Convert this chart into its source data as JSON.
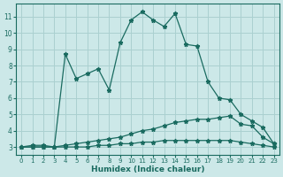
{
  "xlabel": "Humidex (Indice chaleur)",
  "background_color": "#cce8e8",
  "line_color": "#1a6b60",
  "grid_color": "#aad0d0",
  "xlim_min": -0.5,
  "xlim_max": 23.5,
  "ylim_min": 2.5,
  "ylim_max": 11.8,
  "xticks": [
    0,
    1,
    2,
    3,
    4,
    5,
    6,
    7,
    8,
    9,
    10,
    11,
    12,
    13,
    14,
    15,
    16,
    17,
    18,
    19,
    20,
    21,
    22,
    23
  ],
  "yticks": [
    3,
    4,
    5,
    6,
    7,
    8,
    9,
    10,
    11
  ],
  "series_main_x": [
    0,
    1,
    2,
    3,
    4,
    5,
    6,
    7,
    8,
    9,
    10,
    11,
    12,
    13,
    14,
    15,
    16,
    17,
    18,
    19,
    20,
    21,
    22,
    23
  ],
  "series_main_y": [
    3.0,
    3.1,
    3.1,
    3.0,
    8.7,
    7.2,
    7.5,
    7.8,
    6.5,
    9.4,
    10.8,
    11.3,
    10.8,
    10.4,
    11.2,
    9.3,
    9.2,
    7.0,
    6.0,
    5.9,
    5.0,
    4.6,
    4.2,
    3.2
  ],
  "series_mid_x": [
    0,
    1,
    2,
    3,
    4,
    5,
    6,
    7,
    8,
    9,
    10,
    11,
    12,
    13,
    14,
    15,
    16,
    17,
    18,
    19,
    20,
    21,
    22,
    23
  ],
  "series_mid_y": [
    3.0,
    3.0,
    3.0,
    3.0,
    3.1,
    3.2,
    3.3,
    3.4,
    3.5,
    3.6,
    3.8,
    4.0,
    4.1,
    4.3,
    4.5,
    4.6,
    4.7,
    4.7,
    4.8,
    4.9,
    4.4,
    4.3,
    3.6,
    3.2
  ],
  "series_flat_x": [
    0,
    1,
    2,
    3,
    4,
    5,
    6,
    7,
    8,
    9,
    10,
    11,
    12,
    13,
    14,
    15,
    16,
    17,
    18,
    19,
    20,
    21,
    22,
    23
  ],
  "series_flat_y": [
    3.0,
    3.0,
    3.0,
    3.0,
    3.0,
    3.0,
    3.0,
    3.1,
    3.1,
    3.2,
    3.2,
    3.3,
    3.3,
    3.4,
    3.4,
    3.4,
    3.4,
    3.4,
    3.4,
    3.4,
    3.3,
    3.2,
    3.1,
    3.0
  ]
}
